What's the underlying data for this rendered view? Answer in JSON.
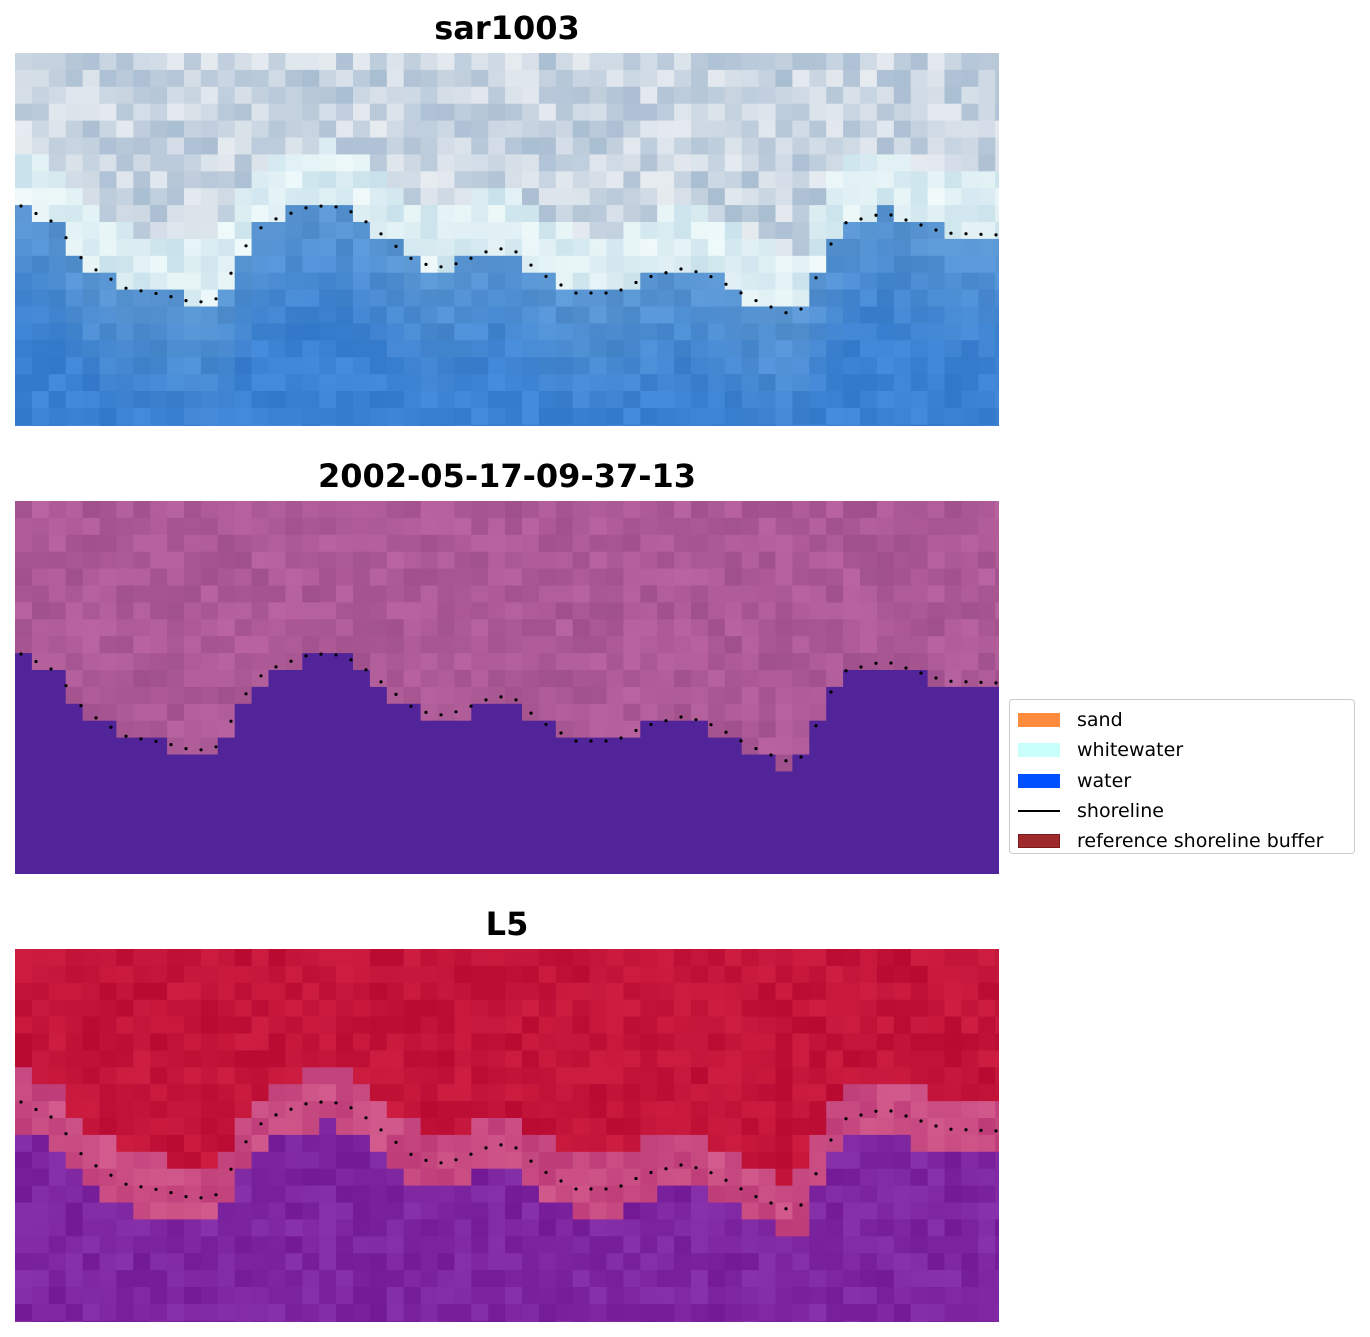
{
  "panels": [
    {
      "id": "rgb",
      "title": "sar1003"
    },
    {
      "id": "classified",
      "title": "2002-05-17-09-37-13"
    },
    {
      "id": "index",
      "title": "L5"
    }
  ],
  "legend": {
    "items": [
      {
        "label": "sand",
        "kind": "patch",
        "color": "#ff8c3c"
      },
      {
        "label": "whitewater",
        "kind": "patch",
        "color": "#c8fffa"
      },
      {
        "label": "water",
        "kind": "patch",
        "color": "#0050ff"
      },
      {
        "label": "shoreline",
        "kind": "line",
        "color": "#000000"
      },
      {
        "label": "reference shoreline buffer",
        "kind": "patch",
        "color": "#9e2a2b"
      }
    ]
  },
  "colors": {
    "rgb_water": "#3d7fc0",
    "rgb_whitewater": "#dde8ef",
    "rgb_sky": "#b8c8dc",
    "classified_land": "#b05a92",
    "classified_water": "#52249a",
    "index_land": "#c0103a",
    "index_water": "#7a2299",
    "index_edge": "#c0487a",
    "shoreline_dots": "#000000"
  }
}
